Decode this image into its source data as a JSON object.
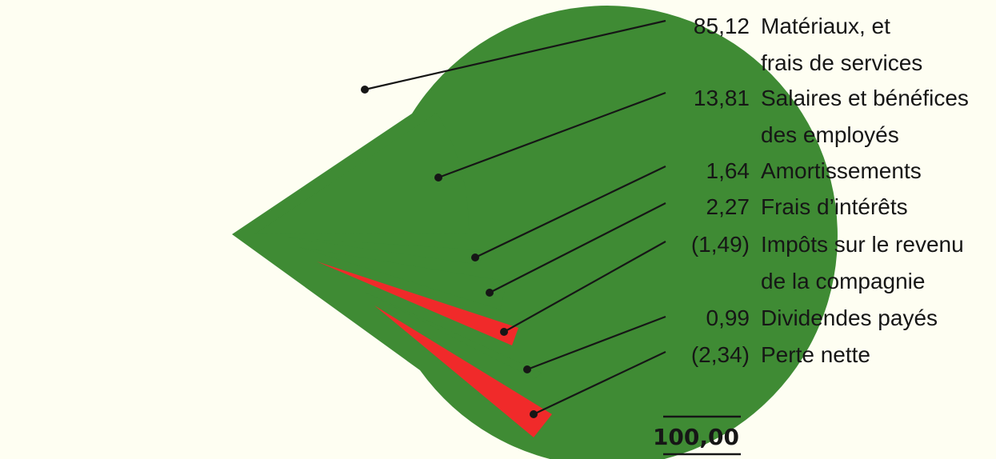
{
  "chart_data": {
    "type": "pie",
    "title": "",
    "colors": {
      "positive": "#3f8b34",
      "negative": "#f02a2a"
    },
    "slices": [
      {
        "value_label": "85,12",
        "label_lines": [
          "Matériaux, et",
          "frais de services"
        ],
        "value": 85.12,
        "negative": false
      },
      {
        "value_label": "13,81",
        "label_lines": [
          "Salaires et bénéfices",
          "des employés"
        ],
        "value": 13.81,
        "negative": false
      },
      {
        "value_label": "1,64",
        "label_lines": [
          "Amortissements"
        ],
        "value": 1.64,
        "negative": false
      },
      {
        "value_label": "2,27",
        "label_lines": [
          "Frais d’intérêts"
        ],
        "value": 2.27,
        "negative": false
      },
      {
        "value_label": "(1,49)",
        "label_lines": [
          "Impôts sur le revenu",
          "de la compagnie"
        ],
        "value": -1.49,
        "negative": true
      },
      {
        "value_label": "0,99",
        "label_lines": [
          "Dividendes payés"
        ],
        "value": 0.99,
        "negative": false
      },
      {
        "value_label": "(2,34)",
        "label_lines": [
          "Perte nette"
        ],
        "value": -2.34,
        "negative": true
      }
    ],
    "total_label": "100,00"
  }
}
